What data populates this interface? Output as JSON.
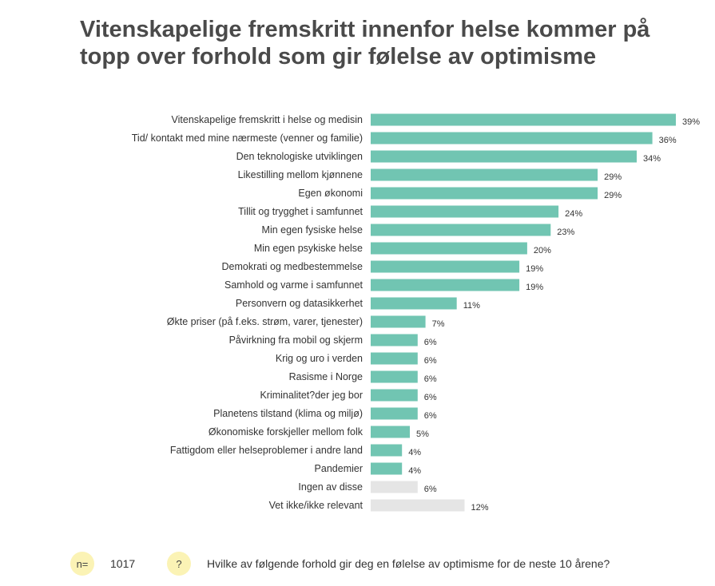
{
  "title": "Vitenskapelige fremskritt innenfor helse kommer på topp over forhold som gir følelse av optimisme",
  "colors": {
    "bar": "#71c5b2",
    "bar_neutral": "#e5e5e5",
    "badge": "#fbf3b5"
  },
  "footer": {
    "n_badge": "n=",
    "n_value": "1017",
    "question_badge": "?",
    "question": "Hvilke av følgende forhold gir deg en følelse av optimisme for de neste 10 årene?"
  },
  "chart_data": {
    "type": "bar",
    "orientation": "horizontal",
    "categories": [
      "Vitenskapelige fremskritt i helse og medisin",
      "Tid/ kontakt med mine nærmeste (venner og familie)",
      "Den teknologiske utviklingen",
      "Likestilling mellom kjønnene",
      "Egen økonomi",
      "Tillit og trygghet i samfunnet",
      "Min egen fysiske helse",
      "Min egen psykiske helse",
      "Demokrati og medbestemmelse",
      "Samhold og varme i samfunnet",
      "Personvern og datasikkerhet",
      "Økte priser (på f.eks. strøm, varer, tjenester)",
      "Påvirkning fra mobil og skjerm",
      "Krig og uro i verden",
      "Rasisme i Norge",
      "Kriminalitet?der jeg bor",
      "Planetens tilstand (klima og miljø)",
      "Økonomiske forskjeller mellom folk",
      "Fattigdom eller helseproblemer i andre land",
      "Pandemier",
      "Ingen av disse",
      "Vet ikke/ikke relevant"
    ],
    "values": [
      39,
      36,
      34,
      29,
      29,
      24,
      23,
      20,
      19,
      19,
      11,
      7,
      6,
      6,
      6,
      6,
      6,
      5,
      4,
      4,
      6,
      12
    ],
    "value_labels": [
      "39%",
      "36%",
      "34%",
      "29%",
      "29%",
      "24%",
      "23%",
      "20%",
      "19%",
      "19%",
      "11%",
      "7%",
      "6%",
      "6%",
      "6%",
      "6%",
      "6%",
      "5%",
      "4%",
      "4%",
      "6%",
      "12%"
    ],
    "neutral": [
      false,
      false,
      false,
      false,
      false,
      false,
      false,
      false,
      false,
      false,
      false,
      false,
      false,
      false,
      false,
      false,
      false,
      false,
      false,
      false,
      true,
      true
    ],
    "unit": "%",
    "xlim": [
      0,
      40
    ],
    "grid": false,
    "legend": "none"
  }
}
